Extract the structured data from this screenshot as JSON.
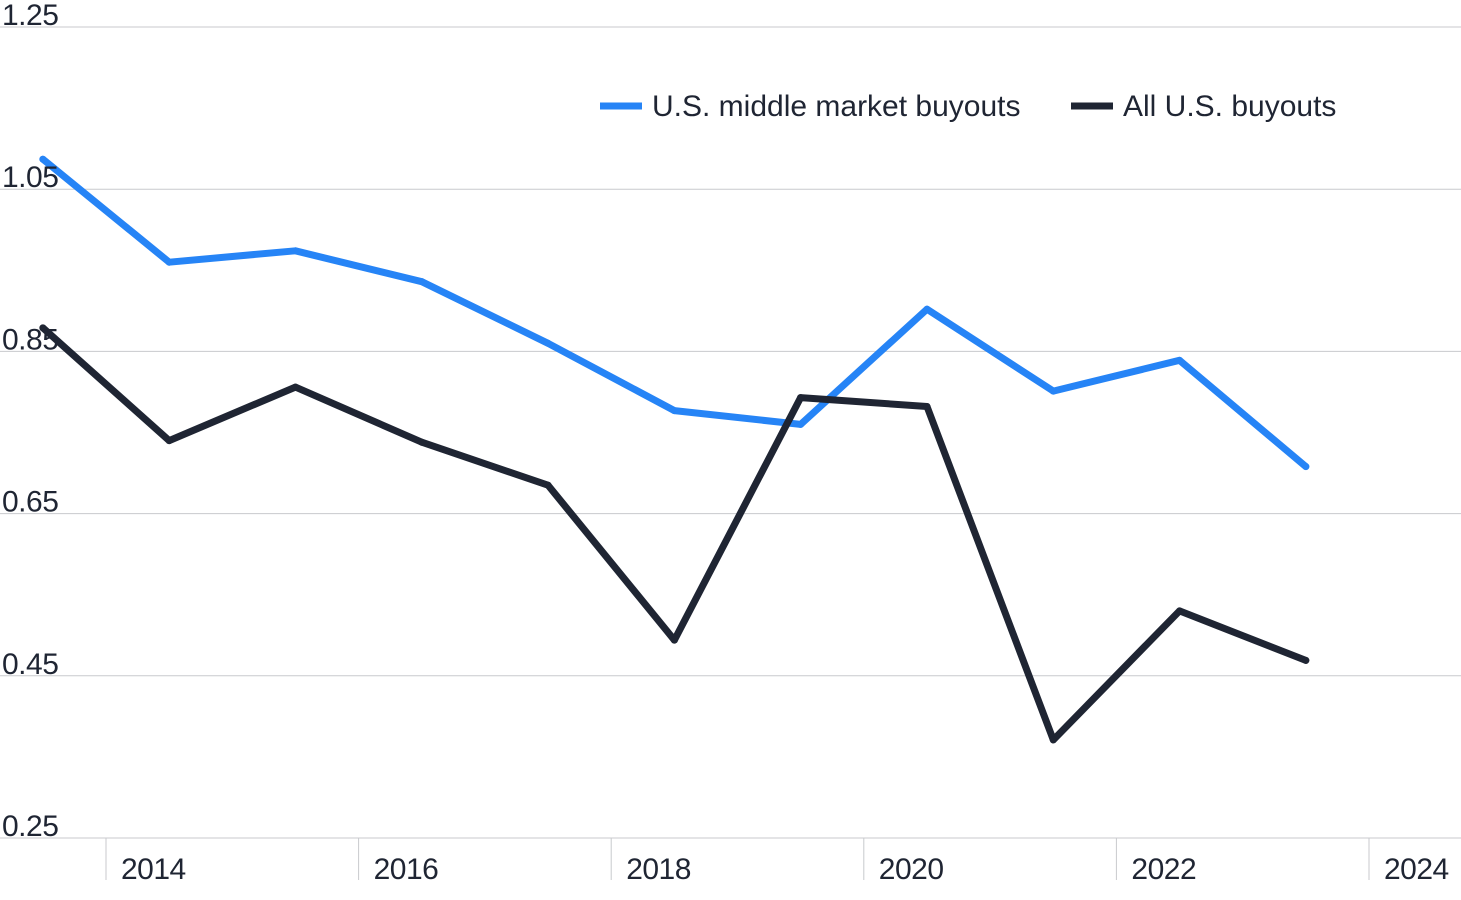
{
  "chart_data": {
    "type": "line",
    "x": [
      2014,
      2015,
      2016,
      2017,
      2018,
      2019,
      2020,
      2021,
      2022,
      2023,
      2024
    ],
    "xtick_labels": [
      "2014",
      "2016",
      "2018",
      "2020",
      "2022",
      "2024"
    ],
    "xtick_values": [
      2014,
      2016,
      2018,
      2020,
      2022,
      2024
    ],
    "ytick_labels": [
      "0.25",
      "0.45",
      "0.65",
      "0.85",
      "1.05",
      "1.25"
    ],
    "ytick_values": [
      0.25,
      0.45,
      0.65,
      0.85,
      1.05,
      1.25
    ],
    "ylim": [
      0.25,
      1.25
    ],
    "grid": true,
    "legend_position": "top-right",
    "series": [
      {
        "name": "U.S. middle market buyouts",
        "color": "#2684f6",
        "points": [
          [
            2013.5,
            1.087
          ],
          [
            2014.5,
            0.96
          ],
          [
            2015.5,
            0.974
          ],
          [
            2016.5,
            0.936
          ],
          [
            2017.5,
            0.86
          ],
          [
            2018.5,
            0.777
          ],
          [
            2019.5,
            0.76
          ],
          [
            2020.5,
            0.902
          ],
          [
            2021.5,
            0.801
          ],
          [
            2022.5,
            0.839
          ],
          [
            2023.5,
            0.708
          ]
        ]
      },
      {
        "name": "All U.S. buyouts",
        "color": "#1f2533",
        "points": [
          [
            2013.5,
            0.879
          ],
          [
            2014.5,
            0.74
          ],
          [
            2015.5,
            0.806
          ],
          [
            2016.5,
            0.738
          ],
          [
            2017.5,
            0.685
          ],
          [
            2018.5,
            0.494
          ],
          [
            2019.5,
            0.793
          ],
          [
            2020.5,
            0.782
          ],
          [
            2021.5,
            0.371
          ],
          [
            2022.5,
            0.53
          ],
          [
            2023.5,
            0.469
          ]
        ]
      }
    ]
  }
}
